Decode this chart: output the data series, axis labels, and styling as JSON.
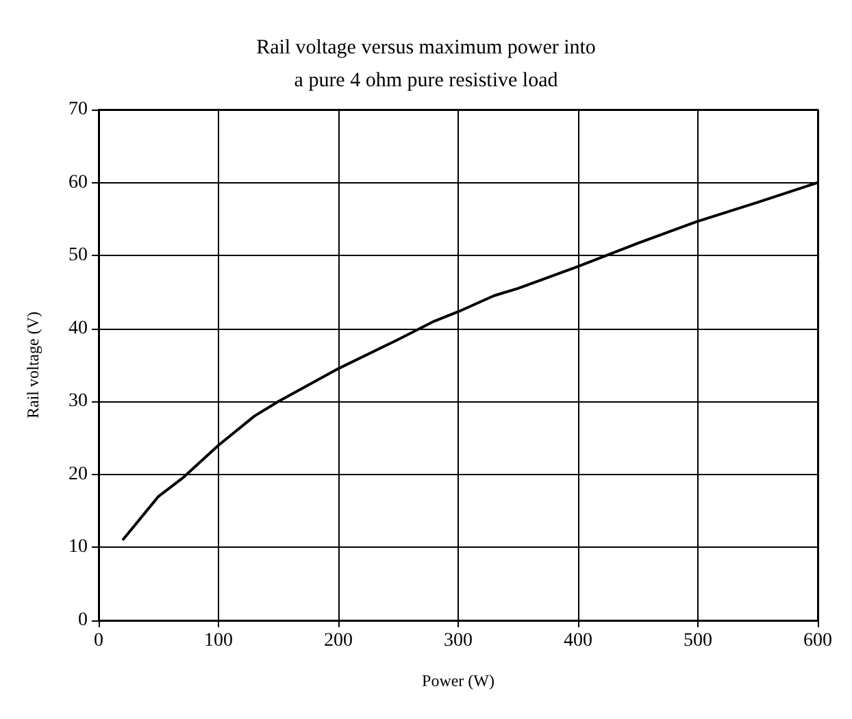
{
  "chart_data": {
    "type": "line",
    "title": "Rail voltage versus maximum power into\na pure 4 ohm pure resistive load",
    "xlabel": "Power (W)",
    "ylabel": "Rail voltage (V)",
    "series": [
      {
        "color": "#000000",
        "x": [
          20,
          30,
          40,
          50,
          70,
          90,
          100,
          130,
          150,
          200,
          250,
          280,
          300,
          330,
          350,
          400,
          450,
          500,
          550,
          600
        ],
        "values": [
          11,
          13,
          15,
          17,
          19.5,
          22.5,
          24,
          28,
          30,
          34.5,
          38.5,
          41,
          42.3,
          44.5,
          45.5,
          48.5,
          51.7,
          54.7,
          57.3,
          60
        ]
      }
    ],
    "xlim": [
      0,
      600
    ],
    "xticks": [
      0,
      100,
      200,
      300,
      400,
      500,
      600
    ],
    "ylim": [
      0,
      70
    ],
    "yticks": [
      0,
      10,
      20,
      30,
      40,
      50,
      60,
      70
    ],
    "grid": true,
    "marker": "none",
    "line_style": "solid"
  }
}
